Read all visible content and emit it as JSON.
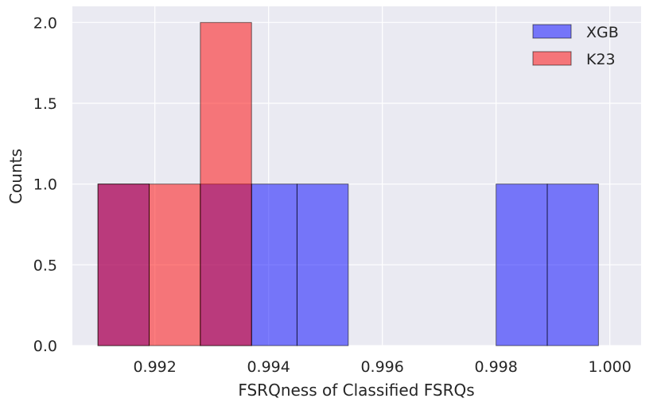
{
  "chart_data": {
    "type": "histogram",
    "title": "",
    "xlabel": "FSRQness of Classified FSRQs",
    "ylabel": "Counts",
    "xlim": [
      0.99055,
      1.00055
    ],
    "ylim": [
      0,
      2.1
    ],
    "xticks": [
      {
        "value": 0.992,
        "label": "0.992"
      },
      {
        "value": 0.994,
        "label": "0.994"
      },
      {
        "value": 0.996,
        "label": "0.996"
      },
      {
        "value": 0.998,
        "label": "0.998"
      },
      {
        "value": 1.0,
        "label": "1.000"
      }
    ],
    "yticks": [
      {
        "value": 0.0,
        "label": "0.0"
      },
      {
        "value": 0.5,
        "label": "0.5"
      },
      {
        "value": 1.0,
        "label": "1.0"
      },
      {
        "value": 1.5,
        "label": "1.5"
      },
      {
        "value": 2.0,
        "label": "2.0"
      }
    ],
    "grid": true,
    "legend_position": "top-right",
    "series": [
      {
        "name": "XGB",
        "color": "#0000ff",
        "opacity": 0.5,
        "bins": [
          {
            "x0": 0.991,
            "x1": 0.9919,
            "count": 1
          },
          {
            "x0": 0.9928,
            "x1": 0.9937,
            "count": 1
          },
          {
            "x0": 0.9937,
            "x1": 0.9945,
            "count": 1
          },
          {
            "x0": 0.9945,
            "x1": 0.9954,
            "count": 1
          },
          {
            "x0": 0.998,
            "x1": 0.9989,
            "count": 1
          },
          {
            "x0": 0.9989,
            "x1": 0.9998,
            "count": 1
          }
        ]
      },
      {
        "name": "K23",
        "color": "#ff0000",
        "opacity": 0.5,
        "bins": [
          {
            "x0": 0.991,
            "x1": 0.9919,
            "count": 1
          },
          {
            "x0": 0.9919,
            "x1": 0.9928,
            "count": 1
          },
          {
            "x0": 0.9928,
            "x1": 0.9937,
            "count": 2
          }
        ]
      }
    ]
  }
}
